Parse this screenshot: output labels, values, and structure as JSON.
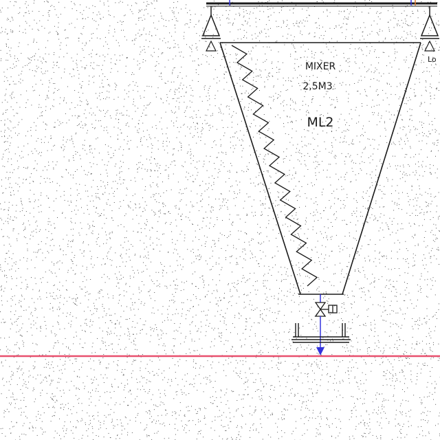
{
  "drawing": {
    "equipment_label": "MIXER",
    "capacity_label": "2,5M3",
    "tag_label": "ML2",
    "side_label": "Lo"
  },
  "colors": {
    "background": "#ffffff",
    "linework": "#1a1a1a",
    "flow_line": "#3333dd",
    "reference_line": "#e8506e",
    "accent_orange": "#e07a2e"
  }
}
